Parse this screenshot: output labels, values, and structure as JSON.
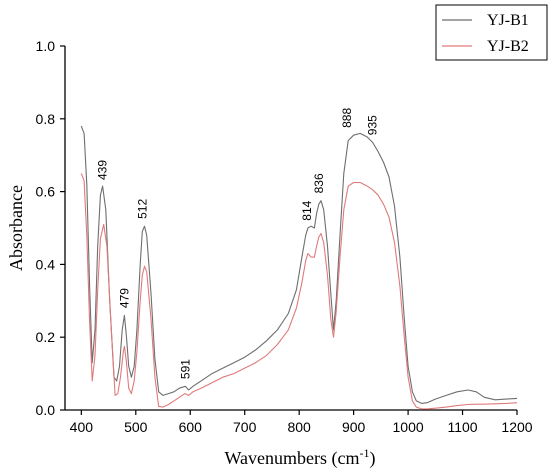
{
  "chart_data": {
    "type": "line",
    "xlabel": "Wavenumbers (cm",
    "xlabel_sup": "-1",
    "xlabel_close": ")",
    "ylabel": "Absorbance",
    "xlim": [
      370,
      1200
    ],
    "ylim": [
      0,
      1.0
    ],
    "xticks": [
      400,
      500,
      600,
      700,
      800,
      900,
      1000,
      1100,
      1200
    ],
    "xtick_labels": [
      "400",
      "500",
      "600",
      "700",
      "800",
      "900",
      "1000",
      "1100",
      "1200"
    ],
    "yticks": [
      0,
      0.2,
      0.4,
      0.6,
      0.8,
      1.0
    ],
    "ytick_labels": [
      "0.0",
      "0.2",
      "0.4",
      "0.6",
      "0.8",
      "1.0"
    ],
    "legend_position": "top-right",
    "series": [
      {
        "name": "YJ-B1",
        "color": "#6e6e6e",
        "points": [
          [
            400,
            0.78
          ],
          [
            405,
            0.76
          ],
          [
            410,
            0.62
          ],
          [
            415,
            0.35
          ],
          [
            420,
            0.13
          ],
          [
            425,
            0.22
          ],
          [
            430,
            0.45
          ],
          [
            435,
            0.59
          ],
          [
            439,
            0.615
          ],
          [
            445,
            0.55
          ],
          [
            452,
            0.3
          ],
          [
            460,
            0.09
          ],
          [
            465,
            0.08
          ],
          [
            470,
            0.12
          ],
          [
            475,
            0.22
          ],
          [
            479,
            0.26
          ],
          [
            483,
            0.2
          ],
          [
            487,
            0.12
          ],
          [
            492,
            0.09
          ],
          [
            497,
            0.12
          ],
          [
            502,
            0.22
          ],
          [
            508,
            0.4
          ],
          [
            512,
            0.49
          ],
          [
            516,
            0.505
          ],
          [
            520,
            0.48
          ],
          [
            528,
            0.32
          ],
          [
            535,
            0.14
          ],
          [
            542,
            0.05
          ],
          [
            550,
            0.04
          ],
          [
            560,
            0.045
          ],
          [
            570,
            0.05
          ],
          [
            580,
            0.06
          ],
          [
            591,
            0.065
          ],
          [
            597,
            0.055
          ],
          [
            605,
            0.065
          ],
          [
            620,
            0.08
          ],
          [
            640,
            0.1
          ],
          [
            660,
            0.115
          ],
          [
            680,
            0.13
          ],
          [
            700,
            0.145
          ],
          [
            720,
            0.165
          ],
          [
            740,
            0.19
          ],
          [
            760,
            0.22
          ],
          [
            780,
            0.265
          ],
          [
            795,
            0.33
          ],
          [
            805,
            0.42
          ],
          [
            812,
            0.48
          ],
          [
            816,
            0.5
          ],
          [
            822,
            0.505
          ],
          [
            828,
            0.5
          ],
          [
            832,
            0.54
          ],
          [
            836,
            0.565
          ],
          [
            840,
            0.575
          ],
          [
            845,
            0.55
          ],
          [
            852,
            0.45
          ],
          [
            858,
            0.32
          ],
          [
            863,
            0.22
          ],
          [
            868,
            0.3
          ],
          [
            875,
            0.48
          ],
          [
            882,
            0.65
          ],
          [
            890,
            0.74
          ],
          [
            900,
            0.755
          ],
          [
            912,
            0.76
          ],
          [
            925,
            0.75
          ],
          [
            935,
            0.735
          ],
          [
            945,
            0.71
          ],
          [
            955,
            0.68
          ],
          [
            965,
            0.64
          ],
          [
            975,
            0.56
          ],
          [
            985,
            0.42
          ],
          [
            993,
            0.25
          ],
          [
            1000,
            0.12
          ],
          [
            1008,
            0.05
          ],
          [
            1015,
            0.025
          ],
          [
            1025,
            0.018
          ],
          [
            1035,
            0.02
          ],
          [
            1050,
            0.03
          ],
          [
            1070,
            0.04
          ],
          [
            1090,
            0.05
          ],
          [
            1110,
            0.055
          ],
          [
            1125,
            0.05
          ],
          [
            1140,
            0.035
          ],
          [
            1160,
            0.028
          ],
          [
            1180,
            0.03
          ],
          [
            1200,
            0.032
          ]
        ]
      },
      {
        "name": "YJ-B2",
        "color": "#e07a7a",
        "points": [
          [
            400,
            0.65
          ],
          [
            405,
            0.63
          ],
          [
            410,
            0.48
          ],
          [
            415,
            0.25
          ],
          [
            420,
            0.08
          ],
          [
            425,
            0.15
          ],
          [
            430,
            0.33
          ],
          [
            435,
            0.47
          ],
          [
            441,
            0.51
          ],
          [
            447,
            0.45
          ],
          [
            455,
            0.22
          ],
          [
            462,
            0.04
          ],
          [
            467,
            0.045
          ],
          [
            472,
            0.09
          ],
          [
            477,
            0.16
          ],
          [
            479,
            0.175
          ],
          [
            483,
            0.13
          ],
          [
            487,
            0.06
          ],
          [
            492,
            0.045
          ],
          [
            497,
            0.08
          ],
          [
            502,
            0.16
          ],
          [
            508,
            0.3
          ],
          [
            512,
            0.37
          ],
          [
            516,
            0.395
          ],
          [
            520,
            0.38
          ],
          [
            528,
            0.25
          ],
          [
            535,
            0.09
          ],
          [
            542,
            0.01
          ],
          [
            550,
            0.008
          ],
          [
            560,
            0.015
          ],
          [
            570,
            0.025
          ],
          [
            580,
            0.035
          ],
          [
            590,
            0.045
          ],
          [
            597,
            0.04
          ],
          [
            605,
            0.05
          ],
          [
            620,
            0.06
          ],
          [
            640,
            0.075
          ],
          [
            660,
            0.09
          ],
          [
            680,
            0.1
          ],
          [
            700,
            0.115
          ],
          [
            720,
            0.13
          ],
          [
            740,
            0.15
          ],
          [
            760,
            0.18
          ],
          [
            780,
            0.22
          ],
          [
            795,
            0.28
          ],
          [
            805,
            0.35
          ],
          [
            812,
            0.41
          ],
          [
            816,
            0.43
          ],
          [
            822,
            0.42
          ],
          [
            828,
            0.42
          ],
          [
            832,
            0.45
          ],
          [
            836,
            0.475
          ],
          [
            840,
            0.485
          ],
          [
            845,
            0.46
          ],
          [
            852,
            0.37
          ],
          [
            858,
            0.25
          ],
          [
            863,
            0.2
          ],
          [
            868,
            0.27
          ],
          [
            875,
            0.42
          ],
          [
            882,
            0.55
          ],
          [
            890,
            0.615
          ],
          [
            900,
            0.625
          ],
          [
            912,
            0.625
          ],
          [
            925,
            0.615
          ],
          [
            935,
            0.605
          ],
          [
            945,
            0.59
          ],
          [
            955,
            0.565
          ],
          [
            965,
            0.53
          ],
          [
            975,
            0.46
          ],
          [
            985,
            0.34
          ],
          [
            993,
            0.2
          ],
          [
            1000,
            0.09
          ],
          [
            1008,
            0.025
          ],
          [
            1015,
            0.008
          ],
          [
            1025,
            0.003
          ],
          [
            1035,
            0.003
          ],
          [
            1050,
            0.005
          ],
          [
            1070,
            0.008
          ],
          [
            1090,
            0.012
          ],
          [
            1110,
            0.015
          ],
          [
            1125,
            0.016
          ],
          [
            1140,
            0.016
          ],
          [
            1160,
            0.017
          ],
          [
            1180,
            0.018
          ],
          [
            1200,
            0.02
          ]
        ]
      }
    ],
    "annotations": [
      {
        "text": "439",
        "x": 439,
        "y": 0.632
      },
      {
        "text": "479",
        "x": 479,
        "y": 0.28
      },
      {
        "text": "512",
        "x": 512,
        "y": 0.525
      },
      {
        "text": "591",
        "x": 591,
        "y": 0.085
      },
      {
        "text": "814",
        "x": 814,
        "y": 0.52
      },
      {
        "text": "836",
        "x": 836,
        "y": 0.595
      },
      {
        "text": "888",
        "x": 888,
        "y": 0.775
      },
      {
        "text": "935",
        "x": 935,
        "y": 0.755
      }
    ]
  }
}
